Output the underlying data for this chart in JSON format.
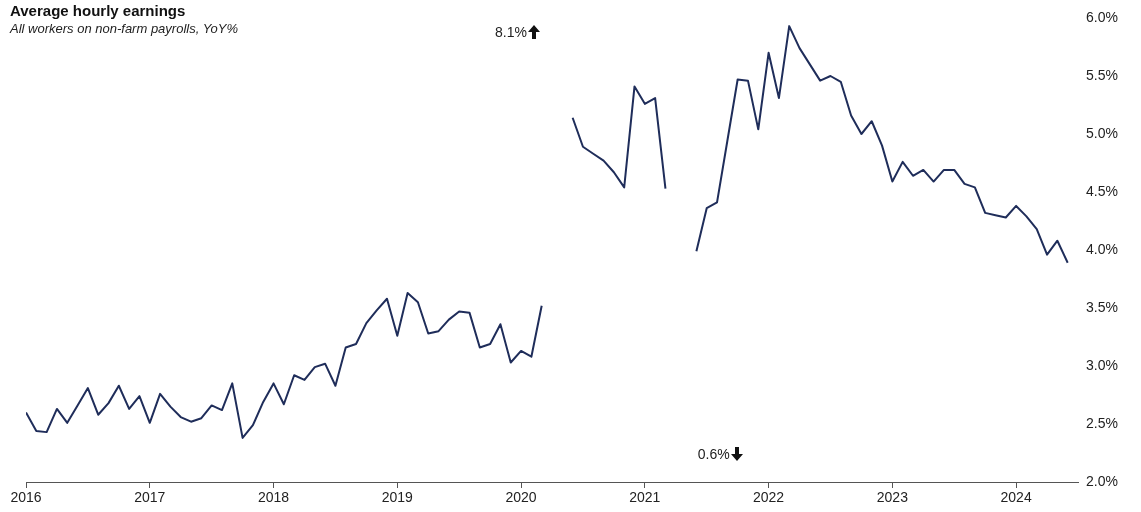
{
  "chart_data": {
    "type": "line",
    "title": "Average hourly earnings",
    "subtitle": "All workers on non-farm payrolls, YoY%",
    "x": [
      "2016-01",
      "2016-02",
      "2016-03",
      "2016-04",
      "2016-05",
      "2016-06",
      "2016-07",
      "2016-08",
      "2016-09",
      "2016-10",
      "2016-11",
      "2016-12",
      "2017-01",
      "2017-02",
      "2017-03",
      "2017-04",
      "2017-05",
      "2017-06",
      "2017-07",
      "2017-08",
      "2017-09",
      "2017-10",
      "2017-11",
      "2017-12",
      "2018-01",
      "2018-02",
      "2018-03",
      "2018-04",
      "2018-05",
      "2018-06",
      "2018-07",
      "2018-08",
      "2018-09",
      "2018-10",
      "2018-11",
      "2018-12",
      "2019-01",
      "2019-02",
      "2019-03",
      "2019-04",
      "2019-05",
      "2019-06",
      "2019-07",
      "2019-08",
      "2019-09",
      "2019-10",
      "2019-11",
      "2019-12",
      "2020-01",
      "2020-02",
      "2020-03",
      "2020-04",
      "2020-05",
      "2020-06",
      "2020-07",
      "2020-08",
      "2020-09",
      "2020-10",
      "2020-11",
      "2020-12",
      "2021-01",
      "2021-02",
      "2021-03",
      "2021-04",
      "2021-05",
      "2021-06",
      "2021-07",
      "2021-08",
      "2021-09",
      "2021-10",
      "2021-11",
      "2021-12",
      "2022-01",
      "2022-02",
      "2022-03",
      "2022-04",
      "2022-05",
      "2022-06",
      "2022-07",
      "2022-08",
      "2022-09",
      "2022-10",
      "2022-11",
      "2022-12",
      "2023-01",
      "2023-02",
      "2023-03",
      "2023-04",
      "2023-05",
      "2023-06",
      "2023-07",
      "2023-08",
      "2023-09",
      "2023-10",
      "2023-11",
      "2023-12",
      "2024-01",
      "2024-02",
      "2024-03",
      "2024-04",
      "2024-05",
      "2024-06"
    ],
    "series": [
      {
        "color": "#1f2d5a",
        "values": [
          2.6,
          2.44,
          2.43,
          2.63,
          2.51,
          2.66,
          2.81,
          2.58,
          2.68,
          2.83,
          2.63,
          2.74,
          2.51,
          2.76,
          2.65,
          2.56,
          2.52,
          2.55,
          2.66,
          2.62,
          2.85,
          2.38,
          2.49,
          2.69,
          2.85,
          2.67,
          2.92,
          2.88,
          2.99,
          3.02,
          2.83,
          3.16,
          3.19,
          3.37,
          3.48,
          3.58,
          3.26,
          3.63,
          3.55,
          3.28,
          3.3,
          3.4,
          3.47,
          3.46,
          3.16,
          3.19,
          3.36,
          3.03,
          3.13,
          3.08,
          3.52,
          null,
          null,
          5.14,
          4.89,
          4.83,
          4.77,
          4.67,
          4.54,
          5.41,
          5.26,
          5.31,
          4.53,
          null,
          null,
          3.99,
          4.36,
          4.41,
          4.94,
          5.47,
          5.46,
          5.04,
          5.7,
          5.31,
          5.93,
          5.74,
          5.6,
          5.46,
          5.5,
          5.45,
          5.16,
          5.0,
          5.11,
          4.9,
          4.59,
          4.76,
          4.64,
          4.69,
          4.59,
          4.69,
          4.69,
          4.57,
          4.54,
          4.32,
          4.3,
          4.28,
          4.38,
          4.29,
          4.18,
          3.96,
          4.08,
          3.89
        ]
      }
    ],
    "xlim": [
      "2016-01",
      "2024-07"
    ],
    "xticks": [
      "2016",
      "2017",
      "2018",
      "2019",
      "2020",
      "2021",
      "2022",
      "2023",
      "2024"
    ],
    "ylim": [
      2,
      6
    ],
    "yticks": [
      {
        "value": 2,
        "label": "2.0%"
      },
      {
        "value": 2.5,
        "label": "2.5%"
      },
      {
        "value": 3,
        "label": "3.0%"
      },
      {
        "value": 3.5,
        "label": "3.5%"
      },
      {
        "value": 4,
        "label": "4.0%"
      },
      {
        "value": 4.5,
        "label": "4.5%"
      },
      {
        "value": 5,
        "label": "5.0%"
      },
      {
        "value": 5.5,
        "label": "5.5%"
      },
      {
        "value": 6,
        "label": "6.0%"
      }
    ],
    "annotations": [
      "8.1%",
      "0.6%"
    ],
    "grid": false,
    "legend": false,
    "marker": "none",
    "line_style": "solid"
  }
}
